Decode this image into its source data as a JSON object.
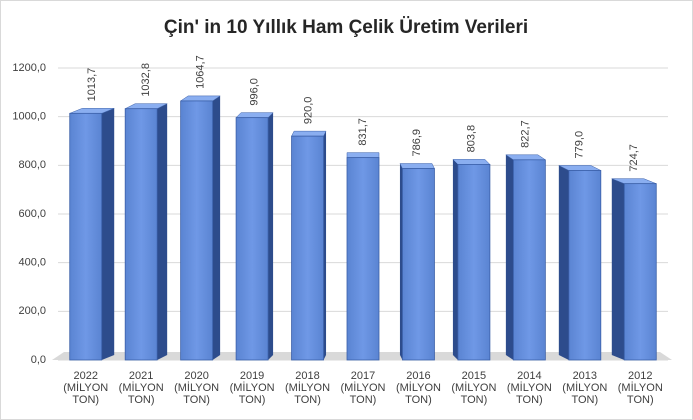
{
  "chart_data": {
    "type": "bar3d",
    "title": "Çin' in 10 Yıllık Ham Çelik Üretim Verileri",
    "categories": [
      "2022 (MİLYON TON)",
      "2021 (MİLYON TON)",
      "2020 (MİLYON TON)",
      "2019 (MİLYON TON)",
      "2018 (MİLYON TON)",
      "2017 (MİLYON TON)",
      "2016 (MİLYON TON)",
      "2015 (MİLYON TON)",
      "2014 (MİLYON TON)",
      "2013 (MİLYON TON)",
      "2012 (MİLYON TON)"
    ],
    "values": [
      1013.7,
      1032.8,
      1064.7,
      996.0,
      920.0,
      831.7,
      786.9,
      803.8,
      822.7,
      779.0,
      724.7
    ],
    "value_labels": [
      "1013,7",
      "1032,8",
      "1064,7",
      "996,0",
      "920,0",
      "831,7",
      "786,9",
      "803,8",
      "822,7",
      "779,0",
      "724,7"
    ],
    "color": "#5b86d6",
    "ylim": [
      0,
      1200
    ],
    "yticks": [
      {
        "value": 0,
        "label": "0,0"
      },
      {
        "value": 200,
        "label": "200,0"
      },
      {
        "value": 400,
        "label": "400,0"
      },
      {
        "value": 600,
        "label": "600,0"
      },
      {
        "value": 800,
        "label": "800,0"
      },
      {
        "value": 1000,
        "label": "1000,0"
      },
      {
        "value": 1200,
        "label": "1200,0"
      }
    ],
    "grid": true
  }
}
